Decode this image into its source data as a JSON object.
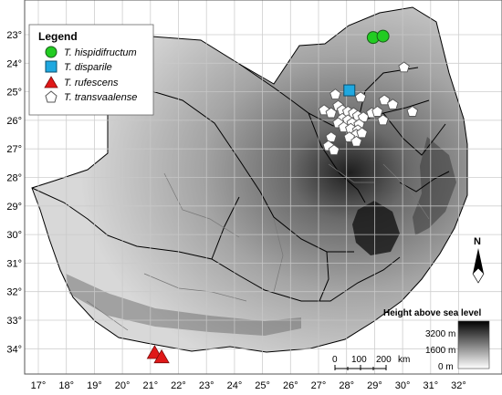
{
  "axes": {
    "lon_labels": [
      "17°",
      "18°",
      "19°",
      "20°",
      "21°",
      "22°",
      "23°",
      "24°",
      "25°",
      "26°",
      "27°",
      "28°",
      "29°",
      "30°",
      "31°",
      "32°"
    ],
    "lat_labels": [
      "23°",
      "24°",
      "25°",
      "26°",
      "27°",
      "28°",
      "29°",
      "30°",
      "31°",
      "32°",
      "33°",
      "34°"
    ]
  },
  "legend": {
    "title": "Legend",
    "items": [
      {
        "label": "T. hispidifructum",
        "shape": "circle",
        "color": "#22cc22"
      },
      {
        "label": "T. disparile",
        "shape": "square",
        "color": "#1fa8e0"
      },
      {
        "label": "T. rufescens",
        "shape": "triangle",
        "color": "#e01818"
      },
      {
        "label": "T. transvaalense",
        "shape": "pentagon",
        "color": "#ffffff"
      }
    ]
  },
  "records": {
    "hispidifructum": [
      [
        28.95,
        -23.1
      ],
      [
        29.3,
        -23.05
      ]
    ],
    "disparile": [
      [
        28.1,
        -24.95
      ]
    ],
    "rufescens": [
      [
        21.15,
        -34.15
      ],
      [
        21.4,
        -34.3
      ]
    ],
    "transvaalense": [
      [
        30.05,
        -24.15
      ],
      [
        29.35,
        -25.3
      ],
      [
        29.65,
        -25.45
      ],
      [
        27.2,
        -25.65
      ],
      [
        27.45,
        -25.75
      ],
      [
        27.7,
        -25.5
      ],
      [
        27.85,
        -25.65
      ],
      [
        28.05,
        -25.7
      ],
      [
        28.25,
        -25.75
      ],
      [
        28.4,
        -25.85
      ],
      [
        28.6,
        -25.9
      ],
      [
        28.9,
        -25.75
      ],
      [
        27.85,
        -25.95
      ],
      [
        28.05,
        -26.0
      ],
      [
        28.2,
        -26.1
      ],
      [
        28.45,
        -26.15
      ],
      [
        27.7,
        -26.1
      ],
      [
        27.9,
        -26.25
      ],
      [
        28.15,
        -26.3
      ],
      [
        28.4,
        -26.35
      ],
      [
        29.1,
        -25.7
      ],
      [
        29.3,
        -26.0
      ],
      [
        30.35,
        -25.7
      ],
      [
        28.35,
        -26.5
      ],
      [
        28.55,
        -26.45
      ],
      [
        27.45,
        -26.6
      ],
      [
        28.1,
        -26.6
      ],
      [
        28.35,
        -26.75
      ],
      [
        27.35,
        -26.9
      ],
      [
        27.55,
        -27.05
      ],
      [
        27.6,
        -25.1
      ],
      [
        28.5,
        -25.2
      ]
    ]
  },
  "compass": {
    "label": "N"
  },
  "scale_bar": {
    "labels": [
      "0",
      "100",
      "200"
    ],
    "unit": "km"
  },
  "elevation": {
    "title": "Height above sea level",
    "labels": [
      "3200 m",
      "1600 m",
      "0 m"
    ]
  }
}
